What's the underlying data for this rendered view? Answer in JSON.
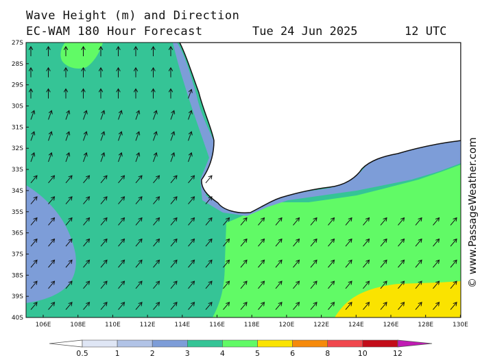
{
  "header": {
    "title_line1": "Wave Height (m) and Direction",
    "title_line2": "EC-WAM 180 Hour Forecast",
    "date": "Tue 24 Jun 2025",
    "time": "12 UTC"
  },
  "credit": "© www.PassageWeather.com",
  "map": {
    "lat_labels": [
      "27S",
      "28S",
      "29S",
      "30S",
      "31S",
      "32S",
      "33S",
      "34S",
      "35S",
      "36S",
      "37S",
      "38S",
      "39S",
      "40S"
    ],
    "lon_labels": [
      "106E",
      "108E",
      "110E",
      "112E",
      "114E",
      "116E",
      "118E",
      "120E",
      "122E",
      "124E",
      "126E",
      "128E",
      "130E"
    ],
    "lon_range": [
      105,
      130
    ],
    "lat_range": [
      -27,
      -40
    ],
    "wave_direction": "north-east swell"
  },
  "colorbar": {
    "labels": [
      "0.5",
      "1",
      "2",
      "3",
      "4",
      "5",
      "6",
      "8",
      "10",
      "12"
    ],
    "colors": [
      "#dfe6f5",
      "#b1c3e6",
      "#7d9dd8",
      "#35c496",
      "#61fa66",
      "#fae300",
      "#f68a0b",
      "#f0474d",
      "#c30c19",
      "#c01bb3"
    ]
  }
}
